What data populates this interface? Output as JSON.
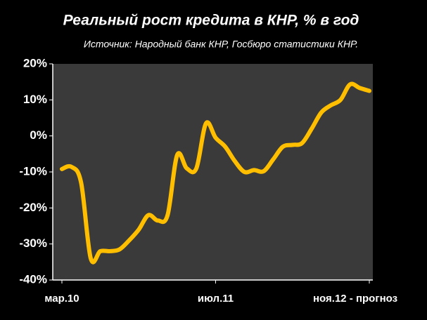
{
  "chart_data": {
    "type": "line",
    "title": "Реальный рост кредита в КНР, % в год",
    "subtitle": "Источник: Народный банк КНР, Госбюро статистики КНР.",
    "categories": [
      "мар.10",
      null,
      null,
      null,
      null,
      null,
      null,
      null,
      null,
      null,
      null,
      null,
      null,
      null,
      null,
      null,
      "июл.11",
      null,
      null,
      null,
      null,
      null,
      null,
      null,
      null,
      null,
      null,
      null,
      null,
      null,
      null,
      null,
      "ноя.12 - прогноз"
    ],
    "series": [
      {
        "color": "#ffbf00",
        "values": [
          -9.2,
          -8.6,
          -13,
          -34,
          -32,
          -32,
          -31.5,
          -29,
          -26,
          -22,
          -23.5,
          -22,
          -5.3,
          -9,
          -9,
          3.5,
          -0.5,
          -3,
          -7,
          -10,
          -9.5,
          -9.8,
          -6.5,
          -3,
          -2.5,
          -2,
          2,
          6.5,
          8.5,
          10,
          14.3,
          13.3,
          12.5
        ]
      }
    ],
    "ylim": [
      -40,
      20
    ],
    "yticks": [
      {
        "value": -40,
        "label": "-40%"
      },
      {
        "value": -30,
        "label": "-30%"
      },
      {
        "value": -20,
        "label": "-20%"
      },
      {
        "value": -10,
        "label": "-10%"
      },
      {
        "value": 0,
        "label": "0%"
      },
      {
        "value": 10,
        "label": "10%"
      },
      {
        "value": 20,
        "label": "20%"
      }
    ],
    "grid": false
  }
}
